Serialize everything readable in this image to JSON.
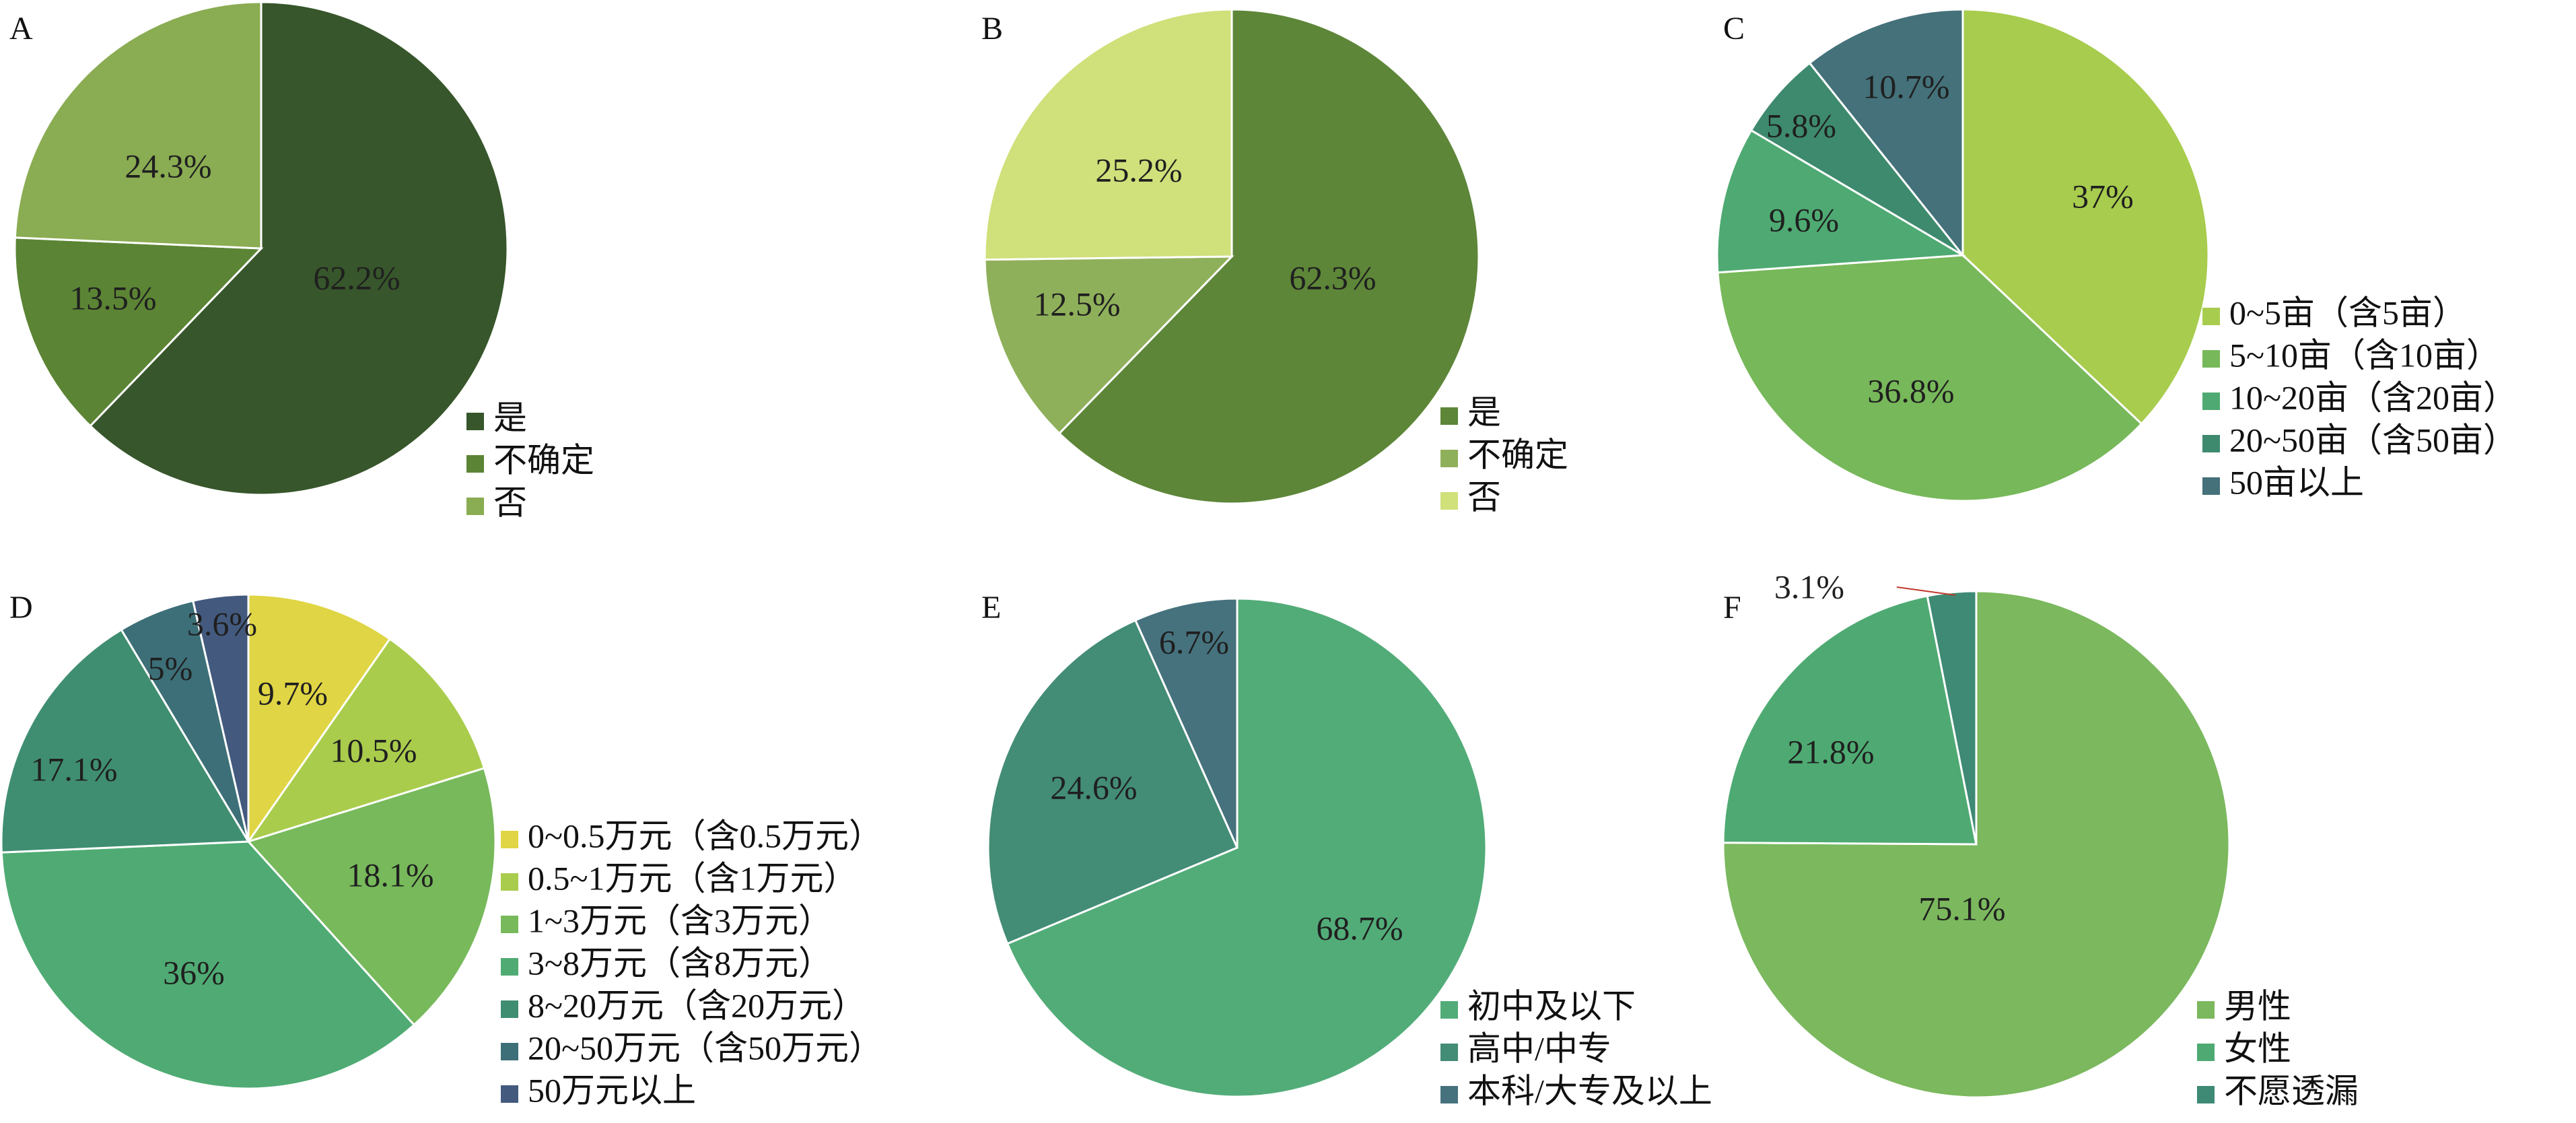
{
  "chart_data": [
    {
      "type": "pie",
      "panel": "A",
      "categories": [
        "是",
        "不确定",
        "否"
      ],
      "values": [
        62.2,
        13.5,
        24.3
      ],
      "labels": [
        "62.2%",
        "13.5%",
        "24.3%"
      ],
      "colors": [
        "#37562b",
        "#5b8434",
        "#8aac52"
      ],
      "start_angle": "12 o'clock",
      "direction": "clockwise",
      "legend_position": "bottom-right"
    },
    {
      "type": "pie",
      "panel": "B",
      "categories": [
        "是",
        "不确定",
        "否"
      ],
      "values": [
        62.3,
        12.5,
        25.2
      ],
      "labels": [
        "62.3%",
        "12.5%",
        "25.2%"
      ],
      "colors": [
        "#5d8638",
        "#8fb05a",
        "#d0e07a"
      ],
      "start_angle": "12 o'clock",
      "direction": "clockwise",
      "legend_position": "bottom-right"
    },
    {
      "type": "pie",
      "panel": "C",
      "categories": [
        "0~5亩（含5亩）",
        "5~10亩（含10亩）",
        "10~20亩（含20亩）",
        "20~50亩（含50亩）",
        "50亩以上"
      ],
      "values": [
        37,
        36.8,
        9.6,
        5.8,
        10.7
      ],
      "labels": [
        "37%",
        "36.8%",
        "9.6%",
        "5.8%",
        "10.7%"
      ],
      "colors": [
        "#a8cc4e",
        "#77b85a",
        "#4eaa72",
        "#3e8a6e",
        "#44717a"
      ],
      "start_angle": "12 o'clock",
      "direction": "clockwise",
      "legend_position": "bottom-right"
    },
    {
      "type": "pie",
      "panel": "D",
      "categories": [
        "0~0.5万元（含0.5万元）",
        "0.5~1万元（含1万元）",
        "1~3万元（含3万元）",
        "3~8万元（含8万元）",
        "8~20万元（含20万元）",
        "20~50万元（含50万元）",
        "50万元以上"
      ],
      "values": [
        9.7,
        10.5,
        18.1,
        36,
        17.1,
        5,
        3.6
      ],
      "labels": [
        "9.7%",
        "10.5%",
        "18.1%",
        "36%",
        "17.1%",
        "5%",
        "3.6%"
      ],
      "colors": [
        "#e0d544",
        "#a9cc4c",
        "#77b95b",
        "#4fab73",
        "#3f8e71",
        "#3d6f78",
        "#435a7e"
      ],
      "start_angle": "12 o'clock",
      "direction": "clockwise",
      "legend_position": "bottom-right"
    },
    {
      "type": "pie",
      "panel": "E",
      "categories": [
        "初中及以下",
        "高中/中专",
        "本科/大专及以上"
      ],
      "values": [
        68.7,
        24.6,
        6.7
      ],
      "labels": [
        "68.7%",
        "24.6%",
        "6.7%"
      ],
      "colors": [
        "#52ac78",
        "#438c76",
        "#46727e"
      ],
      "start_angle": "12 o'clock",
      "direction": "clockwise",
      "legend_position": "bottom-right"
    },
    {
      "type": "pie",
      "panel": "F",
      "categories": [
        "男性",
        "女性",
        "不愿透漏"
      ],
      "values": [
        75.1,
        21.8,
        3.1
      ],
      "labels": [
        "75.1%",
        "21.8%",
        "3.1%"
      ],
      "colors": [
        "#7bb85e",
        "#4eaa72",
        "#3e8a74"
      ],
      "start_angle": "12 o'clock",
      "direction": "clockwise",
      "legend_position": "bottom-right"
    }
  ]
}
